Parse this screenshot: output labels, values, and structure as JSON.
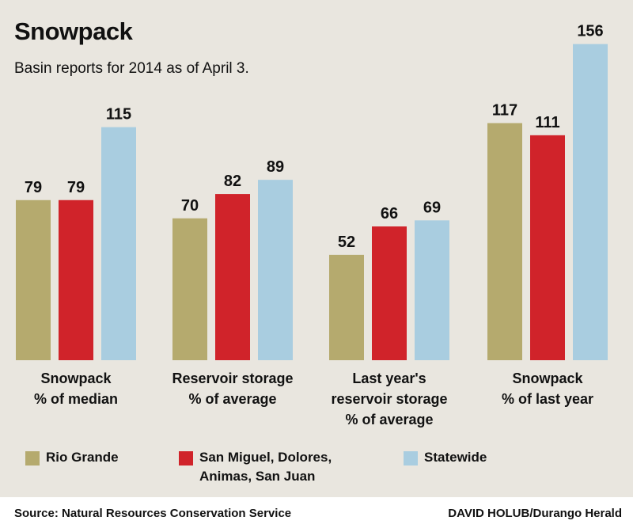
{
  "title": "Snowpack",
  "subtitle": "Basin reports for 2014 as of April 3.",
  "colors": {
    "rio_grande": "#b5aa6e",
    "san_miguel": "#d0232a",
    "statewide": "#a9cde0",
    "panel": "#e9e6df"
  },
  "chart_data": {
    "type": "bar",
    "title": "Snowpack",
    "subtitle": "Basin reports for 2014 as of April 3.",
    "categories": [
      [
        "Snowpack",
        "% of median"
      ],
      [
        "Reservoir storage",
        "% of average"
      ],
      [
        "Last year's",
        "reservoir storage",
        "% of average"
      ],
      [
        "Snowpack",
        "% of last year"
      ]
    ],
    "series": [
      {
        "name": "Rio Grande",
        "values": [
          79,
          70,
          52,
          117
        ]
      },
      {
        "name": "San Miguel, Dolores, Animas, San Juan",
        "values": [
          79,
          82,
          66,
          111
        ]
      },
      {
        "name": "Statewide",
        "values": [
          115,
          89,
          69,
          156
        ]
      }
    ],
    "ylim": [
      0,
      156
    ],
    "grid": false,
    "legend": "bottom"
  },
  "legend": [
    {
      "lines": [
        "Rio Grande"
      ]
    },
    {
      "lines": [
        "San Miguel, Dolores,",
        "Animas, San Juan"
      ]
    },
    {
      "lines": [
        "Statewide"
      ]
    }
  ],
  "footer": {
    "source": "Source: Natural Resources Conservation Service",
    "credit": "DAVID HOLUB/Durango Herald"
  }
}
